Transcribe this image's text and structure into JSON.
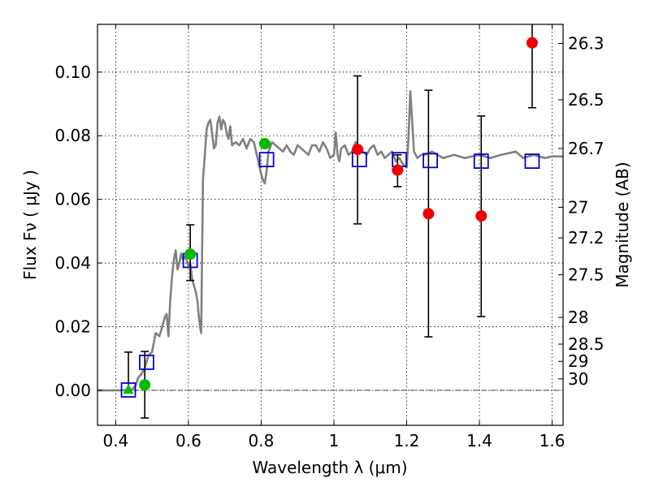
{
  "chart_data": {
    "type": "scatter",
    "title": "",
    "xlabel": "Wavelength  λ (μm)",
    "ylabel": "Flux  Fν  ( μJy )",
    "y2label": "Magnitude (AB)",
    "xlim": [
      0.35,
      1.63
    ],
    "ylim": [
      -0.011,
      0.115
    ],
    "grid": true,
    "x_ticks": [
      0.4,
      0.6,
      0.8,
      1.0,
      1.2,
      1.4,
      1.6
    ],
    "x_tick_labels": [
      "0.4",
      "0.6",
      "0.8",
      "1",
      "1.2",
      "1.4",
      "1.6"
    ],
    "y_ticks": [
      0.0,
      0.02,
      0.04,
      0.06,
      0.08,
      0.1
    ],
    "y_tick_labels": [
      "0.00",
      "0.02",
      "0.04",
      "0.06",
      "0.08",
      "0.10"
    ],
    "y2_ticks": [
      {
        "label": "26.3",
        "flux": 0.109
      },
      {
        "label": "26.5",
        "flux": 0.0913
      },
      {
        "label": "26.7",
        "flux": 0.076
      },
      {
        "label": "27",
        "flux": 0.0575
      },
      {
        "label": "27.2",
        "flux": 0.0479
      },
      {
        "label": "27.5",
        "flux": 0.0363
      },
      {
        "label": "28",
        "flux": 0.0229
      },
      {
        "label": "28.5",
        "flux": 0.0145
      },
      {
        "label": "29",
        "flux": 0.0091
      },
      {
        "label": "30",
        "flux": 0.0036
      }
    ],
    "colors": {
      "model": "#808080",
      "green": "#00bb00",
      "red": "#ee0000",
      "blue": "#0000dd",
      "error": "#000000"
    },
    "model_sed": {
      "name": "Model SED",
      "x": [
        0.35,
        0.38,
        0.41,
        0.43,
        0.445,
        0.455,
        0.462,
        0.47,
        0.48,
        0.49,
        0.5,
        0.51,
        0.52,
        0.528,
        0.535,
        0.54,
        0.545,
        0.55,
        0.555,
        0.56,
        0.565,
        0.57,
        0.575,
        0.58,
        0.585,
        0.59,
        0.595,
        0.6,
        0.605,
        0.61,
        0.615,
        0.62,
        0.625,
        0.628,
        0.632,
        0.635,
        0.64,
        0.645,
        0.65,
        0.655,
        0.66,
        0.665,
        0.67,
        0.675,
        0.68,
        0.685,
        0.69,
        0.695,
        0.7,
        0.705,
        0.71,
        0.715,
        0.72,
        0.73,
        0.74,
        0.75,
        0.76,
        0.77,
        0.78,
        0.79,
        0.8,
        0.805,
        0.81,
        0.815,
        0.82,
        0.83,
        0.84,
        0.85,
        0.86,
        0.87,
        0.88,
        0.89,
        0.9,
        0.91,
        0.92,
        0.93,
        0.94,
        0.95,
        0.96,
        0.97,
        0.98,
        0.99,
        1.0,
        1.005,
        1.01,
        1.015,
        1.02,
        1.03,
        1.04,
        1.05,
        1.06,
        1.07,
        1.08,
        1.09,
        1.1,
        1.11,
        1.12,
        1.13,
        1.14,
        1.15,
        1.16,
        1.17,
        1.18,
        1.19,
        1.2,
        1.205,
        1.21,
        1.215,
        1.22,
        1.23,
        1.24,
        1.25,
        1.27,
        1.3,
        1.33,
        1.36,
        1.4,
        1.43,
        1.46,
        1.5,
        1.52,
        1.55,
        1.58,
        1.6,
        1.63
      ],
      "y": [
        0.0,
        0.0,
        0.0,
        0.0001,
        0.0002,
        0.0015,
        0.004,
        0.005,
        0.007,
        0.011,
        0.012,
        0.018,
        0.017,
        0.02,
        0.023,
        0.024,
        0.017,
        0.028,
        0.036,
        0.041,
        0.044,
        0.038,
        0.04,
        0.043,
        0.041,
        0.042,
        0.041,
        0.039,
        0.04,
        0.035,
        0.033,
        0.031,
        0.028,
        0.024,
        0.02,
        0.018,
        0.066,
        0.074,
        0.082,
        0.084,
        0.085,
        0.081,
        0.076,
        0.077,
        0.084,
        0.086,
        0.082,
        0.085,
        0.084,
        0.081,
        0.079,
        0.083,
        0.077,
        0.078,
        0.077,
        0.079,
        0.076,
        0.079,
        0.078,
        0.073,
        0.068,
        0.066,
        0.065,
        0.069,
        0.075,
        0.078,
        0.077,
        0.076,
        0.075,
        0.077,
        0.075,
        0.074,
        0.077,
        0.076,
        0.075,
        0.074,
        0.077,
        0.077,
        0.075,
        0.078,
        0.076,
        0.073,
        0.074,
        0.081,
        0.074,
        0.072,
        0.076,
        0.077,
        0.074,
        0.075,
        0.078,
        0.076,
        0.075,
        0.074,
        0.076,
        0.077,
        0.074,
        0.075,
        0.073,
        0.074,
        0.075,
        0.072,
        0.073,
        0.071,
        0.07,
        0.079,
        0.094,
        0.085,
        0.075,
        0.073,
        0.074,
        0.074,
        0.075,
        0.073,
        0.074,
        0.073,
        0.074,
        0.073,
        0.074,
        0.075,
        0.073,
        0.074,
        0.073,
        0.0735,
        0.0735
      ]
    },
    "series": [
      {
        "name": "green circles",
        "marker": "circle",
        "color": "green",
        "points": [
          {
            "x": 0.48,
            "y": 0.0017,
            "err_low": -0.0087,
            "err_high": 0.0122
          },
          {
            "x": 0.605,
            "y": 0.0428,
            "err_low": 0.0345,
            "err_high": 0.052
          },
          {
            "x": 0.81,
            "y": 0.0775
          }
        ]
      },
      {
        "name": "green triangle",
        "marker": "triangle",
        "color": "green",
        "points": [
          {
            "x": 0.435,
            "y": 0.0002,
            "err_low": -0.0005,
            "err_high": 0.012
          }
        ]
      },
      {
        "name": "red circles",
        "marker": "circle",
        "color": "red",
        "points": [
          {
            "x": 1.065,
            "y": 0.0757,
            "err_low": 0.0523,
            "err_high": 0.0988
          },
          {
            "x": 1.175,
            "y": 0.0692,
            "err_low": 0.064,
            "err_high": 0.074
          },
          {
            "x": 1.26,
            "y": 0.0555,
            "err_low": 0.0168,
            "err_high": 0.0943
          },
          {
            "x": 1.405,
            "y": 0.0548,
            "err_low": 0.0232,
            "err_high": 0.0862
          },
          {
            "x": 1.545,
            "y": 0.1092,
            "err_low": 0.0888,
            "err_high": 0.119
          }
        ]
      },
      {
        "name": "blue open squares",
        "marker": "square",
        "color": "blue",
        "points": [
          {
            "x": 0.435,
            "y": 0.0001
          },
          {
            "x": 0.485,
            "y": 0.0088
          },
          {
            "x": 0.605,
            "y": 0.0408
          },
          {
            "x": 0.815,
            "y": 0.0725
          },
          {
            "x": 1.07,
            "y": 0.0725
          },
          {
            "x": 1.18,
            "y": 0.0725
          },
          {
            "x": 1.265,
            "y": 0.0722
          },
          {
            "x": 1.405,
            "y": 0.072
          },
          {
            "x": 1.545,
            "y": 0.072
          }
        ]
      }
    ]
  }
}
